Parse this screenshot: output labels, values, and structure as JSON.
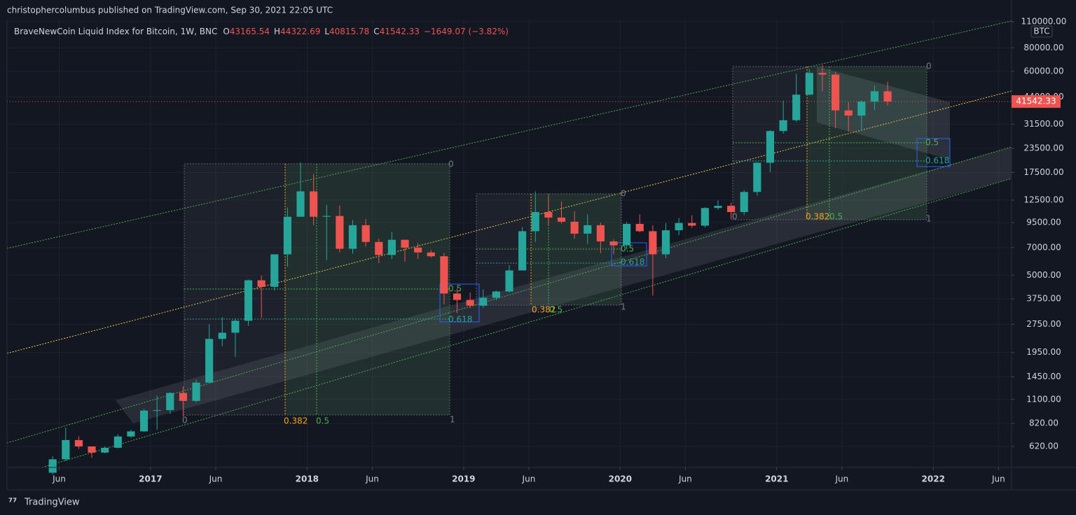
{
  "publisher": "christophercolumbus published on TradingView.com, Sep 30, 2021 22:05 UTC",
  "legend": {
    "symbol": "BraveNewCoin Liquid Index for Bitcoin, 1W, BNC",
    "fields": [
      {
        "key": "O",
        "value": "43165.54"
      },
      {
        "key": "H",
        "value": "44322.69"
      },
      {
        "key": "L",
        "value": "40815.78"
      },
      {
        "key": "C",
        "value": "41542.33"
      }
    ],
    "change": "−1649.07 (−3.82%)"
  },
  "currency": "BTC",
  "brand": "TradingView",
  "annotations": [
    "0",
    "1",
    "0.382",
    "0.5",
    "0",
    "1",
    "0.382",
    "0.5",
    "0",
    "1",
    "0.382",
    "0.5",
    "0",
    "0.5",
    "0.618",
    "0",
    "0.5",
    "0.618",
    "0.5",
    "0.618"
  ],
  "chart_data": {
    "type": "candlestick",
    "log_scale": true,
    "grid": true,
    "up_color": "#26a69a",
    "down_color": "#ef5350",
    "x": [
      "2016-05",
      "2016-06",
      "2016-07",
      "2016-08",
      "2016-09",
      "2016-10",
      "2016-11",
      "2016-12",
      "2017-01",
      "2017-02",
      "2017-03",
      "2017-04",
      "2017-05",
      "2017-06",
      "2017-07",
      "2017-08",
      "2017-09",
      "2017-10",
      "2017-11",
      "2017-12",
      "2018-01",
      "2018-02",
      "2018-03",
      "2018-04",
      "2018-05",
      "2018-06",
      "2018-07",
      "2018-08",
      "2018-09",
      "2018-10",
      "2018-11",
      "2018-12",
      "2019-01",
      "2019-02",
      "2019-03",
      "2019-04",
      "2019-05",
      "2019-06",
      "2019-07",
      "2019-08",
      "2019-09",
      "2019-10",
      "2019-11",
      "2019-12",
      "2020-01",
      "2020-02",
      "2020-03",
      "2020-04",
      "2020-05",
      "2020-06",
      "2020-07",
      "2020-08",
      "2020-09",
      "2020-10",
      "2020-11",
      "2020-12",
      "2021-01",
      "2021-02",
      "2021-03",
      "2021-04",
      "2021-05",
      "2021-06",
      "2021-07",
      "2021-08",
      "2021-09"
    ],
    "open": [
      450,
      530,
      670,
      620,
      575,
      610,
      700,
      745,
      960,
      965,
      1190,
      1080,
      1350,
      2300,
      2480,
      2870,
      4700,
      4340,
      6450,
      10200,
      13900,
      10200,
      10300,
      6900,
      9200,
      7500,
      6400,
      7700,
      7000,
      6600,
      6300,
      4000,
      3700,
      3450,
      3800,
      4100,
      5300,
      8550,
      10800,
      10100,
      9600,
      8300,
      9200,
      7550,
      7200,
      9350,
      8550,
      6450,
      8650,
      9450,
      9150,
      11350,
      11650,
      10800,
      13800,
      19700,
      29000,
      33100,
      45200,
      58900,
      57700,
      37300,
      35000,
      41500,
      47100
    ],
    "high": [
      550,
      780,
      700,
      620,
      620,
      720,
      760,
      980,
      1150,
      1200,
      1290,
      1400,
      2750,
      3000,
      2950,
      4750,
      4980,
      6450,
      11400,
      19800,
      17200,
      11800,
      11700,
      9800,
      9900,
      7800,
      8500,
      7700,
      7400,
      6800,
      6550,
      4250,
      4050,
      4200,
      4150,
      5650,
      9000,
      13900,
      13200,
      12300,
      10900,
      10500,
      9500,
      7750,
      9550,
      10500,
      9200,
      9450,
      10050,
      10400,
      11450,
      12450,
      12100,
      14100,
      19850,
      29300,
      42000,
      58300,
      61700,
      64800,
      59500,
      41300,
      42300,
      50500,
      52900
    ],
    "low": [
      440,
      520,
      600,
      540,
      570,
      605,
      690,
      740,
      760,
      920,
      890,
      1060,
      1350,
      2100,
      1850,
      2700,
      2970,
      4150,
      5550,
      10200,
      9200,
      6000,
      6600,
      6500,
      7100,
      5800,
      6100,
      5900,
      6100,
      6200,
      3500,
      3150,
      3350,
      3350,
      3700,
      4050,
      5300,
      7500,
      9100,
      9400,
      7800,
      7300,
      6550,
      6450,
      6850,
      8450,
      3900,
      6150,
      8150,
      8900,
      8950,
      11100,
      9850,
      10400,
      13200,
      17600,
      28100,
      32400,
      44900,
      47000,
      30000,
      28800,
      29300,
      37400,
      39600
    ],
    "close": [
      530,
      670,
      620,
      575,
      610,
      700,
      745,
      960,
      965,
      1190,
      1080,
      1350,
      2300,
      2480,
      2870,
      4700,
      4340,
      6450,
      10200,
      13900,
      10200,
      10300,
      6900,
      9200,
      7500,
      6400,
      7700,
      7000,
      6600,
      6300,
      4000,
      3700,
      3450,
      3800,
      4100,
      5300,
      8550,
      10800,
      10100,
      9600,
      8300,
      9200,
      7550,
      7200,
      9350,
      8550,
      6450,
      8650,
      9450,
      9150,
      11350,
      11650,
      10800,
      13800,
      19700,
      29000,
      33100,
      45200,
      58900,
      57700,
      37300,
      35000,
      41500,
      47100,
      41542.33
    ],
    "xlim": [
      "2016-02",
      "2022-07"
    ],
    "xticks": [
      {
        "value": "2016-06",
        "label": "Jun"
      },
      {
        "value": "2017-01",
        "label": "2017"
      },
      {
        "value": "2017-06",
        "label": "Jun"
      },
      {
        "value": "2018-01",
        "label": "2018"
      },
      {
        "value": "2018-06",
        "label": "Jun"
      },
      {
        "value": "2019-01",
        "label": "2019"
      },
      {
        "value": "2019-06",
        "label": "Jun"
      },
      {
        "value": "2020-01",
        "label": "2020"
      },
      {
        "value": "2020-06",
        "label": "Jun"
      },
      {
        "value": "2021-01",
        "label": "2021"
      },
      {
        "value": "2021-06",
        "label": "Jun"
      },
      {
        "value": "2022-01",
        "label": "2022"
      },
      {
        "value": "2022-06",
        "label": "Jun"
      }
    ],
    "ylim": [
      480,
      112850
    ],
    "yticks": [
      {
        "value": 110000,
        "label": "110000.00"
      },
      {
        "value": 80000,
        "label": "80000.00"
      },
      {
        "value": 60000,
        "label": "60000.00"
      },
      {
        "value": 44000,
        "label": "44000.00"
      },
      {
        "value": 31500,
        "label": "31500.00"
      },
      {
        "value": 23500,
        "label": "23500.00"
      },
      {
        "value": 17500,
        "label": "17500.00"
      },
      {
        "value": 12500,
        "label": "12500.00"
      },
      {
        "value": 9500,
        "label": "9500.00"
      },
      {
        "value": 7000,
        "label": "7000.00"
      },
      {
        "value": 5000,
        "label": "5000.00"
      },
      {
        "value": 3750,
        "label": "3750.00"
      },
      {
        "value": 2750,
        "label": "2750.00"
      },
      {
        "value": 1950,
        "label": "1950.00"
      },
      {
        "value": 1450,
        "label": "1450.00"
      },
      {
        "value": 1100,
        "label": "1100.00"
      },
      {
        "value": 820,
        "label": "820.00"
      },
      {
        "value": 620,
        "label": "620.00"
      }
    ]
  }
}
